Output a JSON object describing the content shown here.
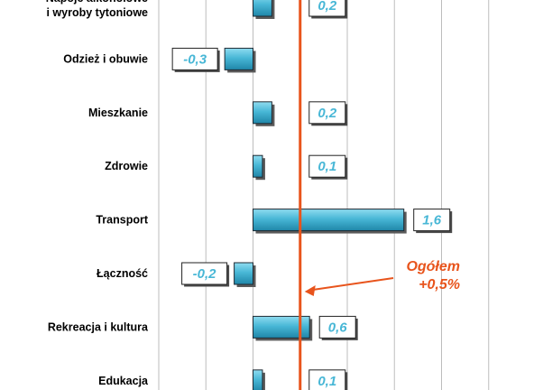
{
  "chart_data": {
    "type": "bar",
    "orientation": "horizontal",
    "categories": [
      [
        "Napoje alkoholowe",
        "i wyroby tytoniowe"
      ],
      [
        "Odzież i obuwie"
      ],
      [
        "Mieszkanie"
      ],
      [
        "Zdrowie"
      ],
      [
        "Transport"
      ],
      [
        "Łączność"
      ],
      [
        "Rekreacja i kultura"
      ],
      [
        "Edukacja"
      ]
    ],
    "values": [
      0.2,
      -0.3,
      0.2,
      0.1,
      1.6,
      -0.2,
      0.6,
      0.1
    ],
    "value_labels": [
      "0,2",
      "-0,3",
      "0,2",
      "0,1",
      "1,6",
      "-0,2",
      "0,6",
      "0,1"
    ],
    "xlim": [
      -1.0,
      3.0
    ],
    "grid": true,
    "reference_line": {
      "value": 0.5,
      "label_line1": "Ogółem",
      "label_line2": "+0,5%",
      "color": "#e8541c"
    },
    "colors": {
      "bar_fill_top": "#8fdcf0",
      "bar_fill_mid": "#48b7d6",
      "bar_fill_bottom": "#1f86a8",
      "label_text": "#48b7d6",
      "grid": "#bdbdbd"
    }
  }
}
